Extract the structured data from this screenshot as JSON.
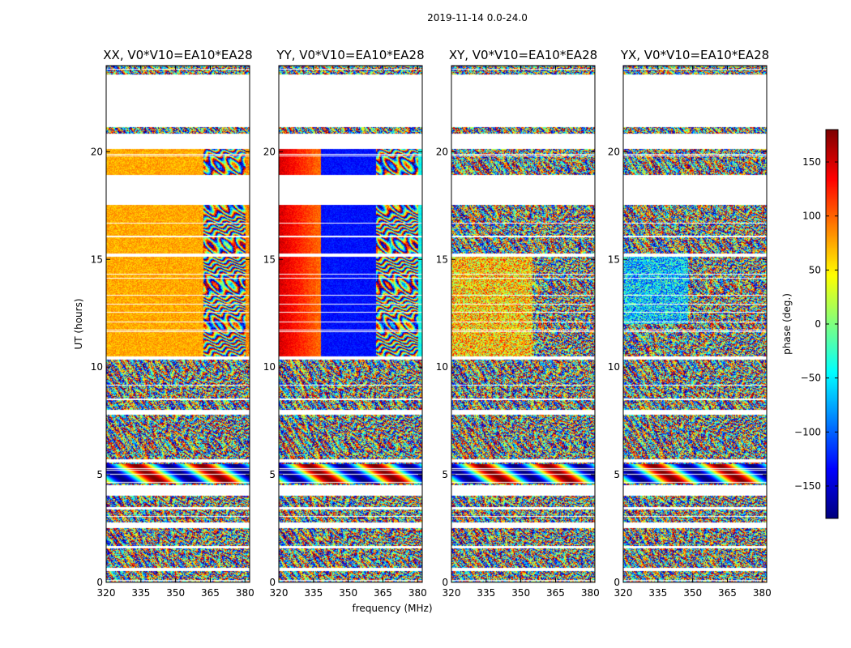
{
  "chart_data": {
    "type": "heatmap",
    "suptitle": "2019-11-14 0.0-24.0",
    "xlabel": "frequency (MHz)",
    "ylabel": "UT (hours)",
    "xlim": [
      320,
      382
    ],
    "ylim": [
      0,
      24
    ],
    "xticks": [
      320,
      335,
      350,
      365,
      380
    ],
    "yticks": [
      0,
      5,
      10,
      15,
      20
    ],
    "panels": [
      {
        "title": "XX, V0*V10=EA10*EA28",
        "pol": "XX"
      },
      {
        "title": "YY, V0*V10=EA10*EA28",
        "pol": "YY"
      },
      {
        "title": "XY, V0*V10=EA10*EA28",
        "pol": "XY"
      },
      {
        "title": "YX, V0*V10=EA10*EA28",
        "pol": "YX"
      }
    ],
    "colorbar": {
      "label": "phase (deg.)",
      "range": [
        -180,
        180
      ],
      "ticks": [
        150,
        100,
        50,
        0,
        -50,
        -100,
        -150
      ],
      "colormap": "jet"
    },
    "time_blocks": [
      [
        0.05,
        0.55
      ],
      [
        0.7,
        1.6
      ],
      [
        1.7,
        2.55
      ],
      [
        2.8,
        3.4
      ],
      [
        3.5,
        4.05
      ],
      [
        4.55,
        5.6
      ],
      [
        5.75,
        7.8
      ],
      [
        8.05,
        10.35
      ],
      [
        10.5,
        15.15
      ],
      [
        15.3,
        17.55
      ],
      [
        18.95,
        20.15
      ],
      [
        20.85,
        21.15
      ],
      [
        23.6,
        24.0
      ]
    ]
  }
}
